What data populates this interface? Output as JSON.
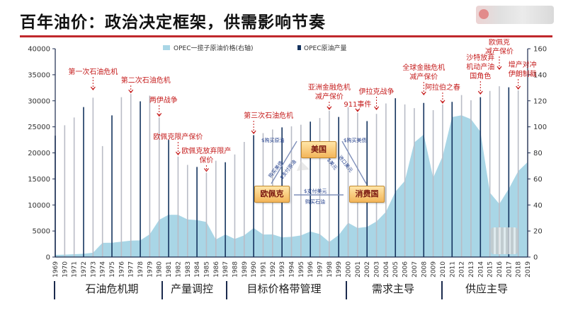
{
  "title": "百年油价：政治决定框架，供需影响节奏",
  "chart_data": {
    "type": "area",
    "legend": [
      "OPEC一揽子原油价格(右轴)",
      "OPEC原油产量"
    ],
    "colors": {
      "price_area": "#a9d6e6",
      "production_bar": "#14335e",
      "annotation": "#c51d1d",
      "axis": "#1b2a4d",
      "grid_dash": "#6c7fb0"
    },
    "x_labels": [
      "1969",
      "1970",
      "1971",
      "1972",
      "1973",
      "1974",
      "1975",
      "1976",
      "1977",
      "1978",
      "1979",
      "1980",
      "1981",
      "1982",
      "1983",
      "1984",
      "1985",
      "1986",
      "1987",
      "1988",
      "1989",
      "1990",
      "1991",
      "1992",
      "1993",
      "1994",
      "1995",
      "1996",
      "1997",
      "1998",
      "1999",
      "2000",
      "2001",
      "2002",
      "2003",
      "2004",
      "2005",
      "2006",
      "2007",
      "2008",
      "2009",
      "2010",
      "2011",
      "2012",
      "2013",
      "2014",
      "2015",
      "2016",
      "2017",
      "2018",
      "2019"
    ],
    "left_axis": {
      "min": 0,
      "max": 40000,
      "ticks": [
        0,
        5000,
        10000,
        15000,
        20000,
        25000,
        30000,
        35000,
        40000
      ]
    },
    "right_axis": {
      "min": 0,
      "max": 160,
      "ticks": [
        0,
        20,
        40,
        60,
        80,
        100,
        120,
        140,
        160
      ]
    },
    "series": [
      {
        "name": "OPEC一揽子原油价格(右轴)",
        "axis": "right",
        "values": [
          1.6,
          1.8,
          2.2,
          2.5,
          3.3,
          10.9,
          11.0,
          11.8,
          12.6,
          12.8,
          17.5,
          28.6,
          32.5,
          32.4,
          28.9,
          28.4,
          26.9,
          13.5,
          17.3,
          13.9,
          16.7,
          22.3,
          17.3,
          17.4,
          15.1,
          15.5,
          16.6,
          19.6,
          17.6,
          11.6,
          16.9,
          26.3,
          22.3,
          23.2,
          27.3,
          34.7,
          50.2,
          58.5,
          88.0,
          94.1,
          60.9,
          77.4,
          107.5,
          108.9,
          105.9,
          96.3,
          49.5,
          40.8,
          52.4,
          66.0,
          73.0
        ]
      },
      {
        "name": "OPEC原油产量",
        "axis": "left",
        "values": [
          23300,
          25300,
          26800,
          28800,
          30600,
          21300,
          27200,
          30700,
          31300,
          29900,
          31000,
          26800,
          22500,
          19300,
          17700,
          17300,
          16200,
          18500,
          18200,
          19700,
          22100,
          23400,
          23800,
          24500,
          24900,
          25100,
          25400,
          26000,
          26700,
          28100,
          26900,
          28800,
          27700,
          26100,
          27500,
          29500,
          30500,
          29300,
          28600,
          29600,
          28200,
          29300,
          29800,
          31100,
          30100,
          30700,
          31900,
          32800,
          32600,
          32000,
          29800
        ]
      }
    ],
    "annotations": [
      {
        "text": "第一次石油危机",
        "x": "1973"
      },
      {
        "text": "第二次石油危机",
        "x": "1977"
      },
      {
        "text": "两伊战争",
        "x": "1980"
      },
      {
        "text": "欧佩克限产保价",
        "x": "1982"
      },
      {
        "text": "欧佩克放弃限产保价",
        "x": "1985"
      },
      {
        "text": "第三次石油危机",
        "x": "1990"
      },
      {
        "text": "亚洲金融危机减产保价",
        "x": "1998"
      },
      {
        "text": "911事件",
        "x": "2001"
      },
      {
        "text": "伊拉克战争",
        "x": "2003"
      },
      {
        "text": "全球金融危机减产保价",
        "x": "2008"
      },
      {
        "text": "阿拉伯之春",
        "x": "2010"
      },
      {
        "text": "沙特放弃机动产油国角色",
        "x": "2014"
      },
      {
        "text": "欧佩克减产保价",
        "x": "2016"
      },
      {
        "text": "增产对冲伊朗制裁",
        "x": "2018"
      }
    ],
    "periods": [
      "石油危机期",
      "产量调控",
      "目标价格带管理",
      "需求主导",
      "供应主导"
    ]
  },
  "diagram": {
    "nodes": {
      "top": "美国",
      "left": "欧佩克",
      "right": "消费国"
    },
    "edges": {
      "top_left_text": "$购买原油",
      "top_right_text": "$购买美债",
      "left_up_a": "购买美债",
      "left_up_b": "$支付原油",
      "right_up_a": "$美元",
      "right_up_b": "进口美元",
      "bottom_upper": "$支付美元",
      "bottom_lower": "购买石油"
    }
  }
}
